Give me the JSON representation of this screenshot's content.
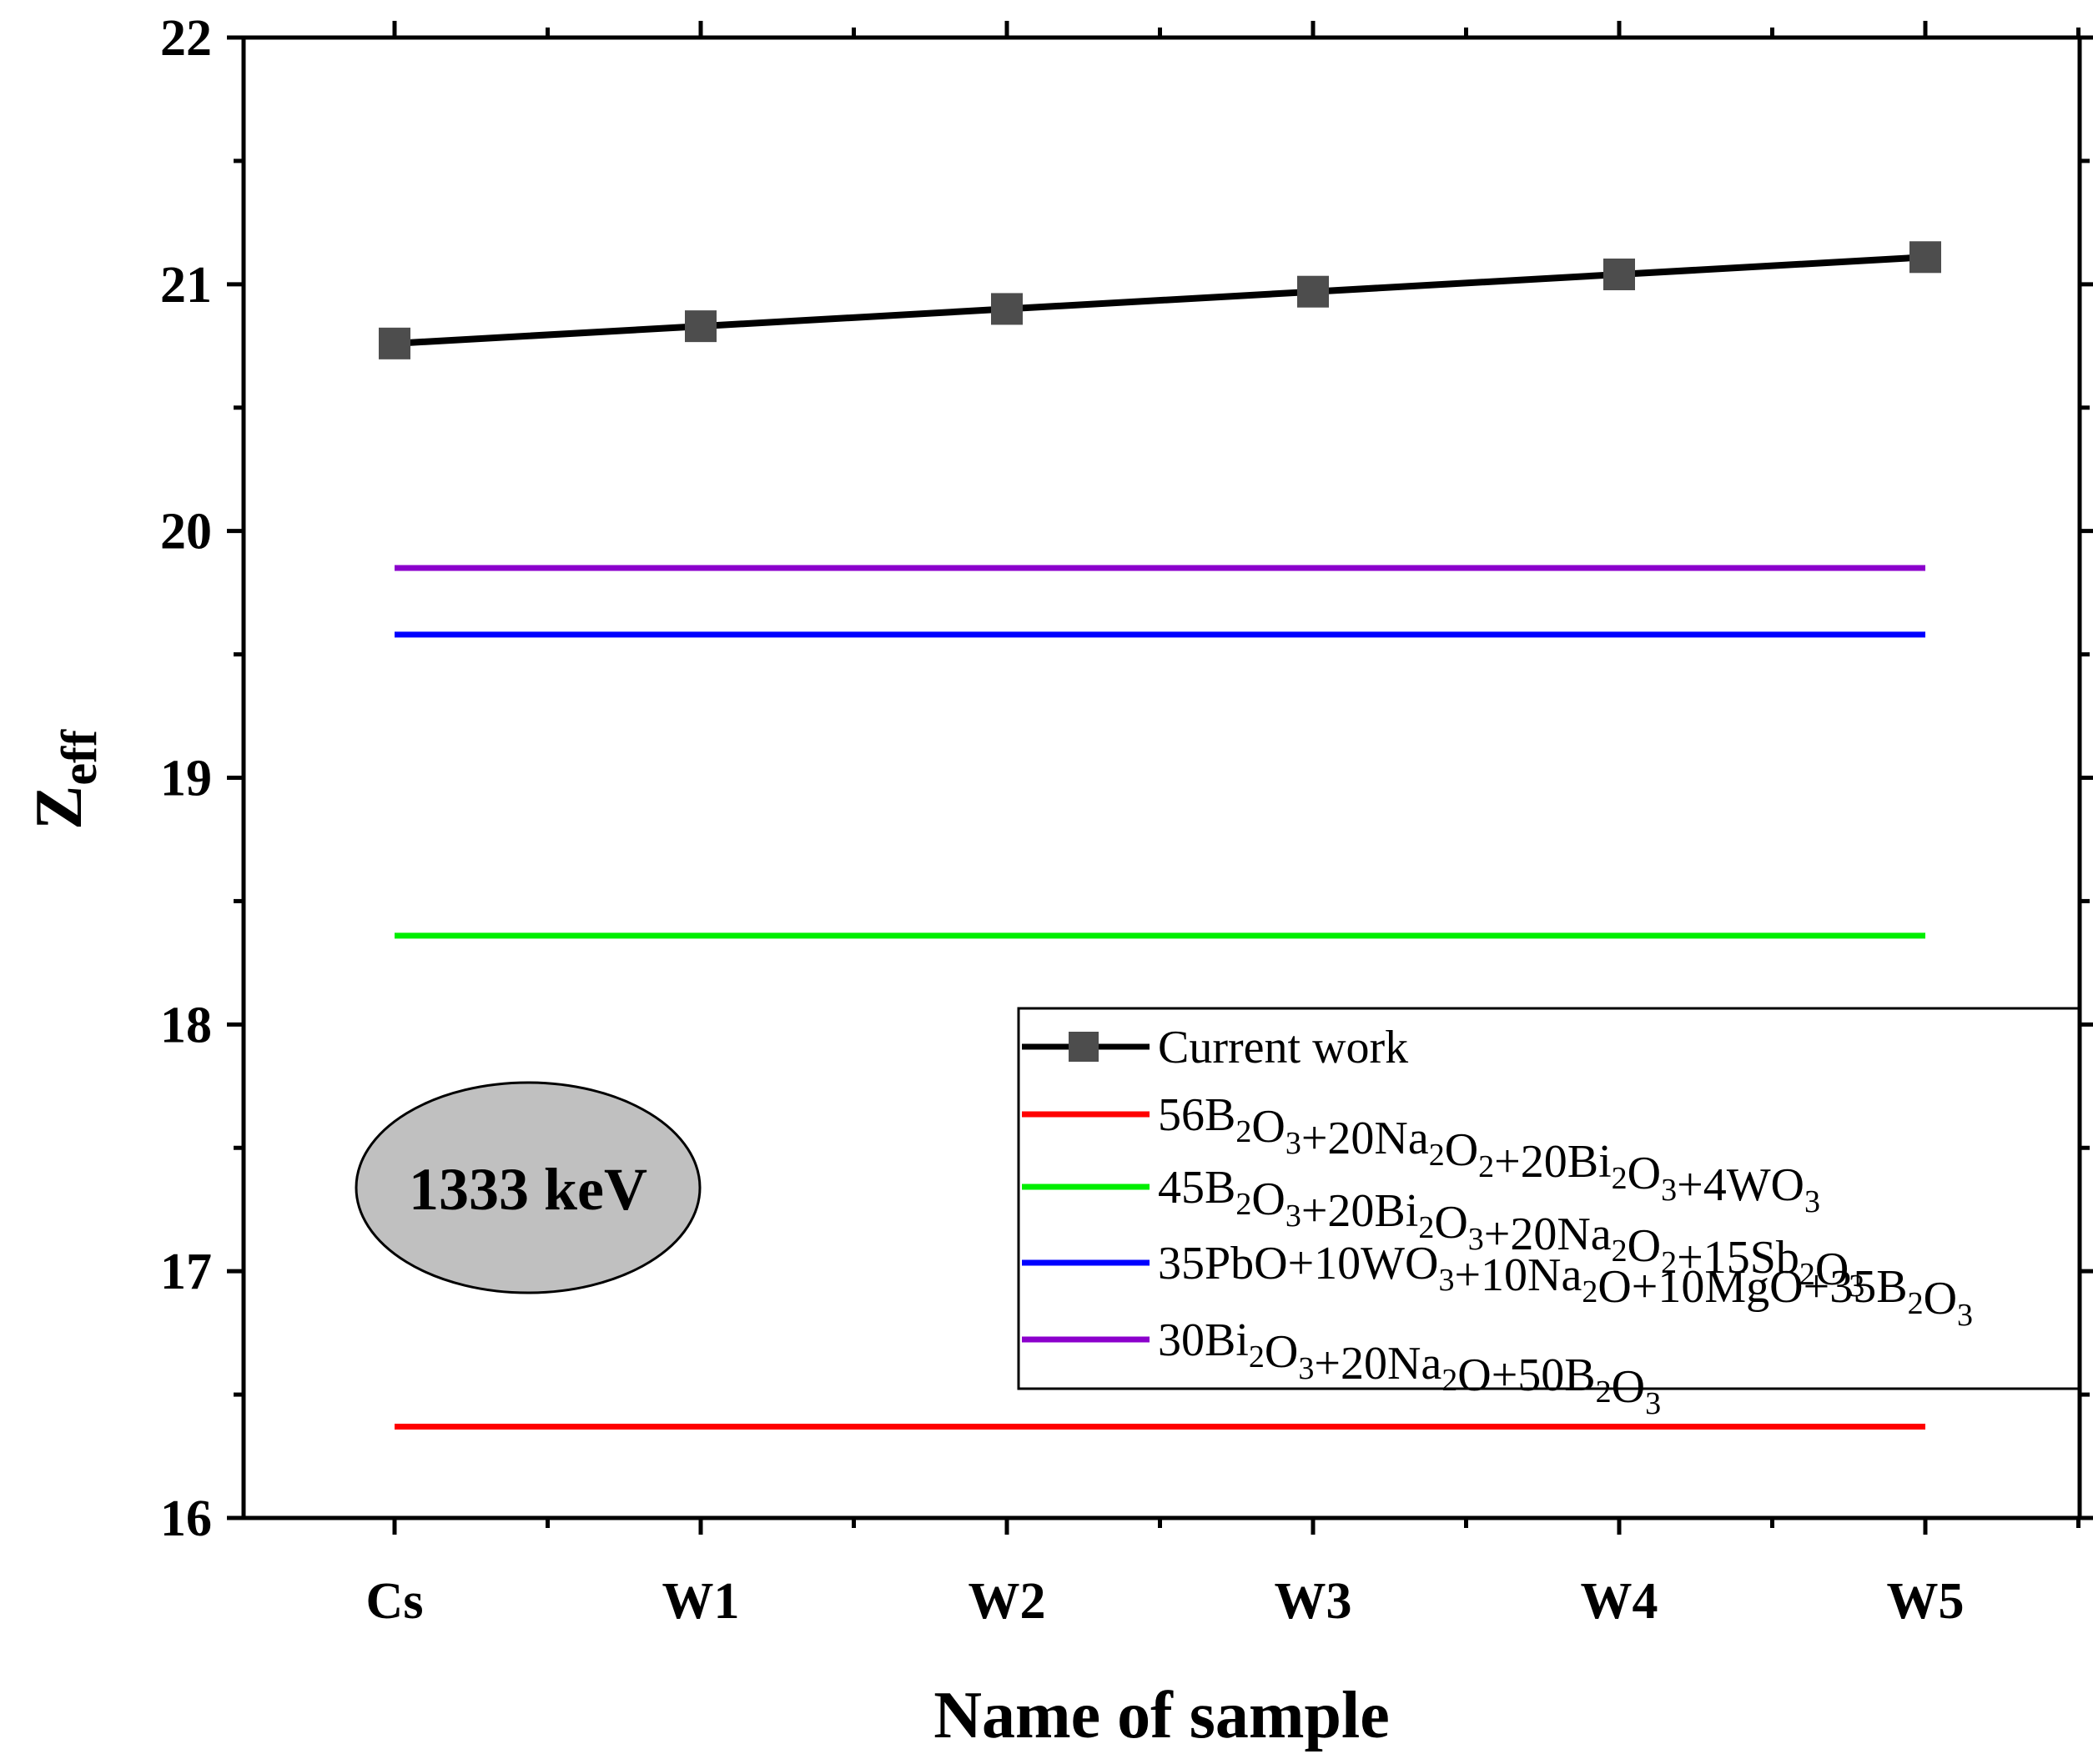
{
  "chart_data": {
    "type": "line",
    "title": "",
    "xlabel": "Name of sample",
    "ylabel": {
      "main": "Z",
      "sub": "eff"
    },
    "categories": [
      "Cs",
      "W1",
      "W2",
      "W3",
      "W4",
      "W5"
    ],
    "ylim": [
      16,
      22
    ],
    "yticks": [
      "16",
      "17",
      "18",
      "19",
      "20",
      "21",
      "22"
    ],
    "annotation": "1333 keV",
    "legend_position": "lower-right",
    "series": [
      {
        "name": "Current work",
        "color": "#000000",
        "marker": "square",
        "marker_color": "#4d4d4d",
        "values": [
          20.76,
          20.83,
          20.9,
          20.97,
          21.04,
          21.11
        ],
        "label_parts": [
          {
            "t": "Current work"
          }
        ]
      },
      {
        "name": "56B2O3+20Na2O2+20Bi2O3+4WO3",
        "color": "#ff0000",
        "marker": "none",
        "values": [
          16.37,
          16.37,
          16.37,
          16.37,
          16.37,
          16.37
        ],
        "label_parts": [
          {
            "t": "56B"
          },
          {
            "s": "2"
          },
          {
            "t": "O"
          },
          {
            "s": "3"
          },
          {
            "t": "+20Na"
          },
          {
            "s": "2"
          },
          {
            "t": "O"
          },
          {
            "s": "2"
          },
          {
            "t": "+20Bi"
          },
          {
            "s": "2"
          },
          {
            "t": "O"
          },
          {
            "s": "3"
          },
          {
            "t": "+4WO"
          },
          {
            "s": "3"
          }
        ]
      },
      {
        "name": "45B2O3+20Bi2O3+20Na2O2+15Sb2O3",
        "color": "#00ee00",
        "marker": "none",
        "values": [
          18.36,
          18.36,
          18.36,
          18.36,
          18.36,
          18.36
        ],
        "label_parts": [
          {
            "t": "45B"
          },
          {
            "s": "2"
          },
          {
            "t": "O"
          },
          {
            "s": "3"
          },
          {
            "t": "+20Bi"
          },
          {
            "s": "2"
          },
          {
            "t": "O"
          },
          {
            "s": "3"
          },
          {
            "t": "+20Na"
          },
          {
            "s": "2"
          },
          {
            "t": "O"
          },
          {
            "s": "2"
          },
          {
            "t": "+15Sb"
          },
          {
            "s": "2"
          },
          {
            "t": "O"
          },
          {
            "s": "3"
          }
        ]
      },
      {
        "name": "35PbO+10WO3+10Na2O+10MgO+35B2O3",
        "color": "#0000ff",
        "marker": "none",
        "values": [
          19.58,
          19.58,
          19.58,
          19.58,
          19.58,
          19.58
        ],
        "label_parts": [
          {
            "t": "35PbO+10WO"
          },
          {
            "s": "3"
          },
          {
            "t": "+10Na"
          },
          {
            "s": "2"
          },
          {
            "t": "O+10MgO+35B"
          },
          {
            "s": "2"
          },
          {
            "t": "O"
          },
          {
            "s": "3"
          }
        ]
      },
      {
        "name": "30Bi2O3+20Na2O+50B2O3",
        "color": "#8b00cc",
        "marker": "none",
        "values": [
          19.85,
          19.85,
          19.85,
          19.85,
          19.85,
          19.85
        ],
        "label_parts": [
          {
            "t": "30Bi"
          },
          {
            "s": "2"
          },
          {
            "t": "O"
          },
          {
            "s": "3"
          },
          {
            "t": "+20Na"
          },
          {
            "s": "2"
          },
          {
            "t": "O+50B"
          },
          {
            "s": "2"
          },
          {
            "t": "O"
          },
          {
            "s": "3"
          }
        ]
      }
    ]
  }
}
